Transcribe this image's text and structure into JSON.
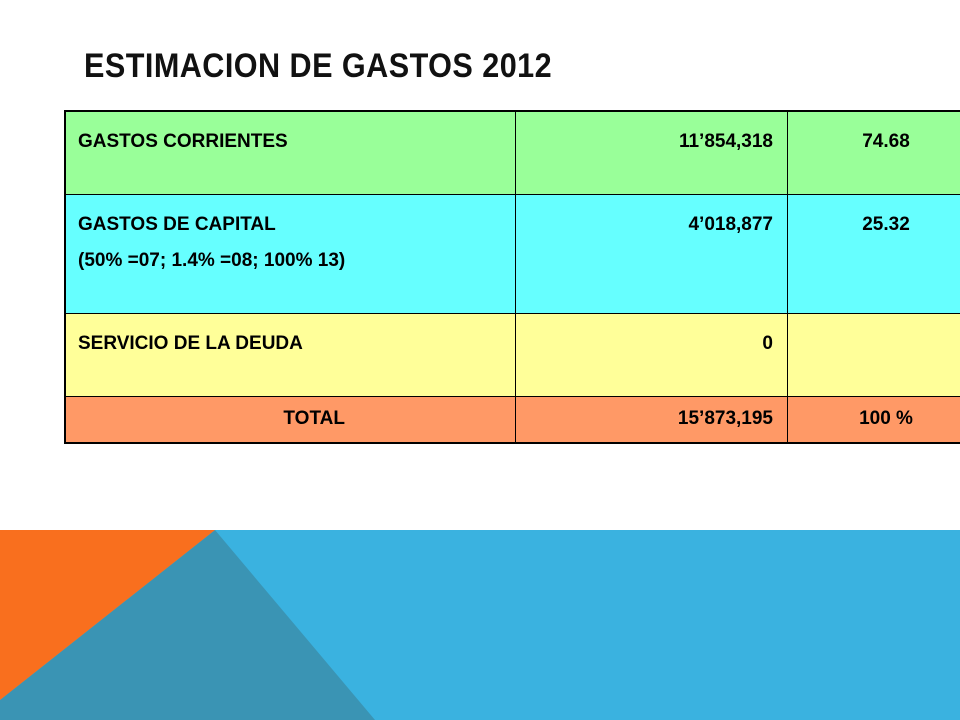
{
  "slide": {
    "title": "ESTIMACION DE GASTOS 2012"
  },
  "table": {
    "rows": [
      {
        "label_lines": [
          "GASTOS CORRIENTES"
        ],
        "amount": "11’854,318",
        "percent": "74.68",
        "color": "#99FF99"
      },
      {
        "label_lines": [
          "GASTOS DE CAPITAL",
          "(50% =07; 1.4% =08; 100% 13)"
        ],
        "amount": "4’018,877",
        "percent": "25.32",
        "color": "#66FFFF"
      },
      {
        "label_lines": [
          "SERVICIO DE LA DEUDA"
        ],
        "amount": "0",
        "percent": "",
        "color": "#FFFF99"
      },
      {
        "label_lines": [
          "TOTAL"
        ],
        "amount": "15’873,195",
        "percent": "100 %",
        "color": "#FF9966"
      }
    ]
  },
  "theme": {
    "blue": "#3AB2E0",
    "dark_blue": "#3A94B4",
    "orange": "#F96F1E"
  }
}
